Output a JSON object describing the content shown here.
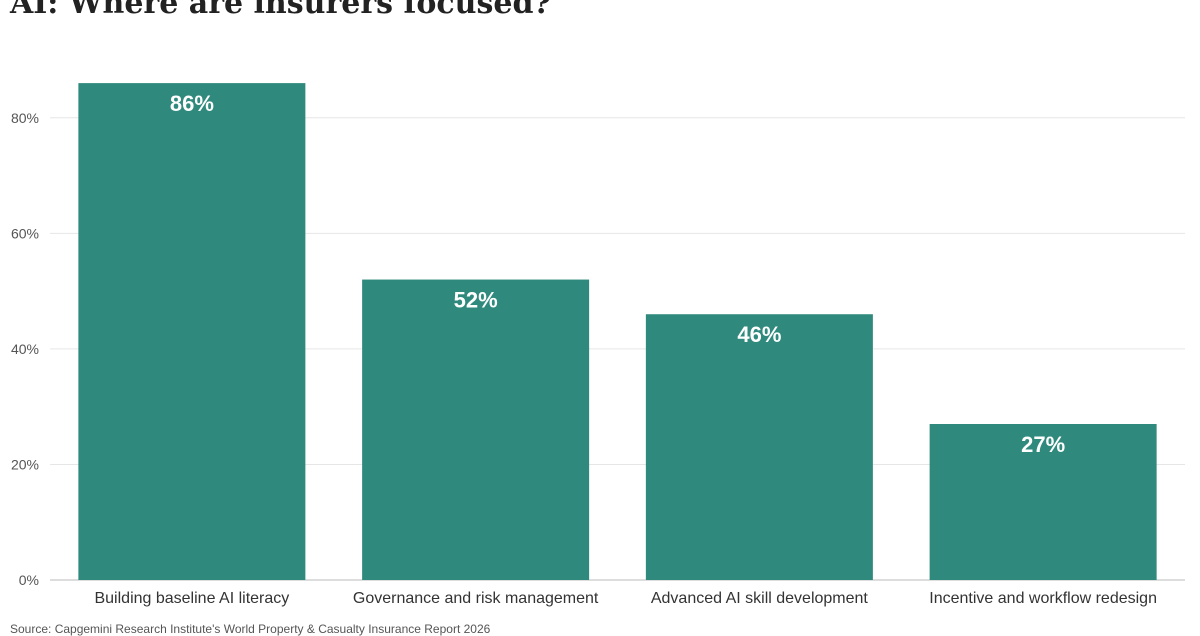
{
  "title": "AI: Where are insurers focused?",
  "chart_data": {
    "type": "bar",
    "title": "AI: Where are insurers focused?",
    "xlabel": "",
    "ylabel": "",
    "categories": [
      "Building baseline AI literacy",
      "Governance and risk management",
      "Advanced AI skill development",
      "Incentive and workflow redesign"
    ],
    "values": [
      86,
      52,
      46,
      27
    ],
    "value_labels": [
      "86%",
      "52%",
      "46%",
      "27%"
    ],
    "ylim": [
      0,
      90
    ],
    "yticks": [
      0,
      20,
      40,
      60,
      80
    ],
    "ytick_labels": [
      "0%",
      "20%",
      "40%",
      "60%",
      "80%"
    ],
    "grid": true,
    "bar_color": "#2f8a7d",
    "label_color": "#ffffff"
  },
  "source": "Source: Capgemini Research Institute's World Property & Casualty Insurance Report 2026"
}
